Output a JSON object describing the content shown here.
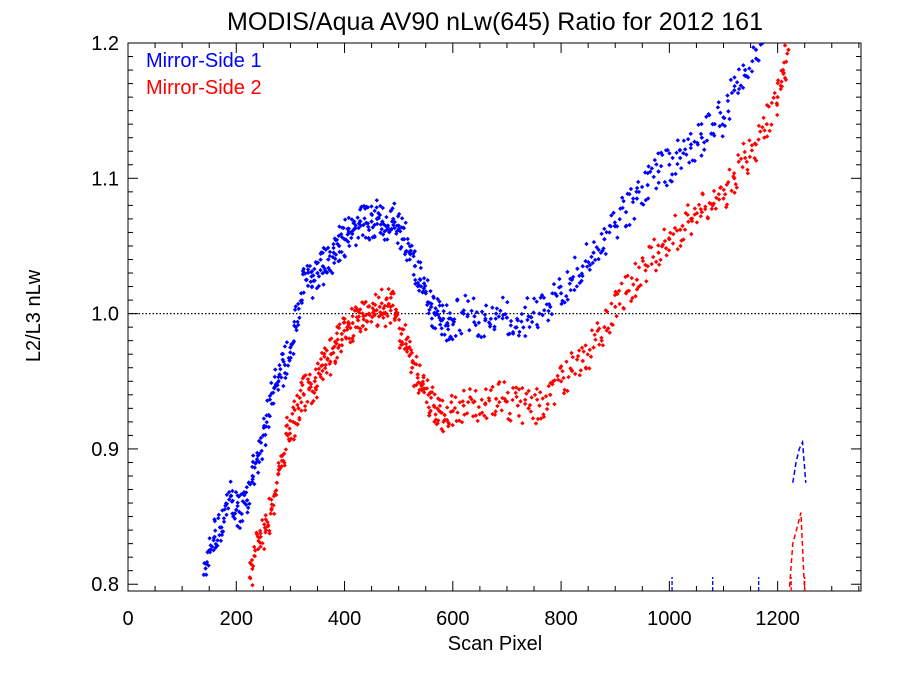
{
  "chart_data": {
    "type": "scatter",
    "title": "MODIS/Aqua AV90 nLw(645) Ratio for 2012 161",
    "xlabel": "Scan Pixel",
    "ylabel": "L2/L3 nLw",
    "xlim": [
      0,
      1354
    ],
    "ylim": [
      0.795,
      1.2
    ],
    "xticks": [
      "0",
      "200",
      "400",
      "600",
      "800",
      "1000",
      "1200"
    ],
    "yticks": [
      "0.8",
      "0.9",
      "1.0",
      "1.1",
      "1.2"
    ],
    "reference_line": 1.0,
    "legend_position": "top-left",
    "series": [
      {
        "name": "Mirror-Side 1",
        "color": "#0000ff",
        "marker": "diamond",
        "points": [
          [
            140,
            0.807
          ],
          [
            150,
            0.825
          ],
          [
            160,
            0.835
          ],
          [
            170,
            0.842
          ],
          [
            180,
            0.858
          ],
          [
            190,
            0.865
          ],
          [
            200,
            0.855
          ],
          [
            210,
            0.852
          ],
          [
            220,
            0.862
          ],
          [
            230,
            0.88
          ],
          [
            240,
            0.895
          ],
          [
            250,
            0.91
          ],
          [
            260,
            0.925
          ],
          [
            270,
            0.945
          ],
          [
            280,
            0.955
          ],
          [
            290,
            0.962
          ],
          [
            300,
            0.975
          ],
          [
            310,
            0.99
          ],
          [
            320,
            1.015
          ],
          [
            330,
            1.025
          ],
          [
            340,
            1.02
          ],
          [
            350,
            1.03
          ],
          [
            360,
            1.035
          ],
          [
            370,
            1.04
          ],
          [
            380,
            1.045
          ],
          [
            390,
            1.05
          ],
          [
            400,
            1.055
          ],
          [
            410,
            1.06
          ],
          [
            420,
            1.063
          ],
          [
            430,
            1.065
          ],
          [
            440,
            1.067
          ],
          [
            450,
            1.068
          ],
          [
            460,
            1.07
          ],
          [
            470,
            1.068
          ],
          [
            480,
            1.065
          ],
          [
            490,
            1.07
          ],
          [
            500,
            1.065
          ],
          [
            510,
            1.055
          ],
          [
            520,
            1.045
          ],
          [
            530,
            1.035
          ],
          [
            540,
            1.025
          ],
          [
            550,
            1.015
          ],
          [
            560,
            1.005
          ],
          [
            570,
            1.0
          ],
          [
            580,
            0.995
          ],
          [
            590,
            0.993
          ],
          [
            600,
            0.995
          ],
          [
            620,
            1.0
          ],
          [
            640,
            0.998
          ],
          [
            660,
            0.995
          ],
          [
            680,
            1.0
          ],
          [
            700,
            0.997
          ],
          [
            720,
            0.995
          ],
          [
            740,
            0.998
          ],
          [
            760,
            1.0
          ],
          [
            780,
            1.005
          ],
          [
            800,
            1.015
          ],
          [
            820,
            1.025
          ],
          [
            840,
            1.035
          ],
          [
            860,
            1.045
          ],
          [
            880,
            1.055
          ],
          [
            900,
            1.065
          ],
          [
            920,
            1.075
          ],
          [
            940,
            1.085
          ],
          [
            960,
            1.095
          ],
          [
            980,
            1.105
          ],
          [
            1000,
            1.11
          ],
          [
            1020,
            1.115
          ],
          [
            1040,
            1.125
          ],
          [
            1060,
            1.13
          ],
          [
            1080,
            1.14
          ],
          [
            1100,
            1.145
          ],
          [
            1120,
            1.165
          ],
          [
            1140,
            1.18
          ],
          [
            1160,
            1.195
          ],
          [
            1180,
            1.205
          ]
        ]
      },
      {
        "name": "Mirror-Side 2",
        "color": "#ff0000",
        "marker": "diamond",
        "points": [
          [
            225,
            0.805
          ],
          [
            235,
            0.825
          ],
          [
            245,
            0.835
          ],
          [
            255,
            0.84
          ],
          [
            265,
            0.855
          ],
          [
            275,
            0.875
          ],
          [
            285,
            0.895
          ],
          [
            295,
            0.91
          ],
          [
            305,
            0.92
          ],
          [
            315,
            0.93
          ],
          [
            325,
            0.94
          ],
          [
            335,
            0.945
          ],
          [
            345,
            0.95
          ],
          [
            355,
            0.955
          ],
          [
            365,
            0.962
          ],
          [
            375,
            0.97
          ],
          [
            385,
            0.978
          ],
          [
            395,
            0.985
          ],
          [
            405,
            0.99
          ],
          [
            415,
            0.993
          ],
          [
            425,
            0.995
          ],
          [
            435,
            0.998
          ],
          [
            445,
            1.0
          ],
          [
            455,
            1.002
          ],
          [
            465,
            1.005
          ],
          [
            475,
            1.0
          ],
          [
            485,
            1.005
          ],
          [
            495,
            1.003
          ],
          [
            505,
            0.985
          ],
          [
            515,
            0.975
          ],
          [
            525,
            0.96
          ],
          [
            535,
            0.955
          ],
          [
            545,
            0.948
          ],
          [
            555,
            0.94
          ],
          [
            565,
            0.932
          ],
          [
            575,
            0.928
          ],
          [
            585,
            0.925
          ],
          [
            600,
            0.928
          ],
          [
            620,
            0.932
          ],
          [
            640,
            0.935
          ],
          [
            660,
            0.933
          ],
          [
            680,
            0.937
          ],
          [
            700,
            0.935
          ],
          [
            720,
            0.932
          ],
          [
            740,
            0.93
          ],
          [
            760,
            0.932
          ],
          [
            780,
            0.94
          ],
          [
            800,
            0.95
          ],
          [
            820,
            0.958
          ],
          [
            840,
            0.965
          ],
          [
            860,
            0.975
          ],
          [
            880,
            0.99
          ],
          [
            900,
            1.005
          ],
          [
            920,
            1.015
          ],
          [
            940,
            1.025
          ],
          [
            960,
            1.035
          ],
          [
            980,
            1.045
          ],
          [
            1000,
            1.055
          ],
          [
            1020,
            1.062
          ],
          [
            1040,
            1.07
          ],
          [
            1060,
            1.075
          ],
          [
            1080,
            1.08
          ],
          [
            1100,
            1.085
          ],
          [
            1120,
            1.1
          ],
          [
            1140,
            1.115
          ],
          [
            1160,
            1.125
          ],
          [
            1180,
            1.14
          ],
          [
            1200,
            1.16
          ],
          [
            1210,
            1.18
          ],
          [
            1220,
            1.195
          ]
        ]
      }
    ],
    "dashed_lines": [
      {
        "color": "#0000ff",
        "points": [
          [
            1228,
            0.875
          ],
          [
            1234,
            0.89
          ],
          [
            1240,
            0.9
          ],
          [
            1246,
            0.905
          ],
          [
            1252,
            0.875
          ]
        ]
      },
      {
        "color": "#ff0000",
        "points": [
          [
            1222,
            0.798
          ],
          [
            1228,
            0.83
          ],
          [
            1236,
            0.842
          ],
          [
            1243,
            0.853
          ],
          [
            1248,
            0.81
          ],
          [
            1250,
            0.795
          ]
        ]
      }
    ],
    "baseline_ticks": [
      {
        "color": "#0000ff",
        "x": [
          1005,
          1080,
          1165
        ]
      },
      {
        "color": "#ff0000",
        "x": [
          1225,
          1250
        ]
      }
    ]
  }
}
